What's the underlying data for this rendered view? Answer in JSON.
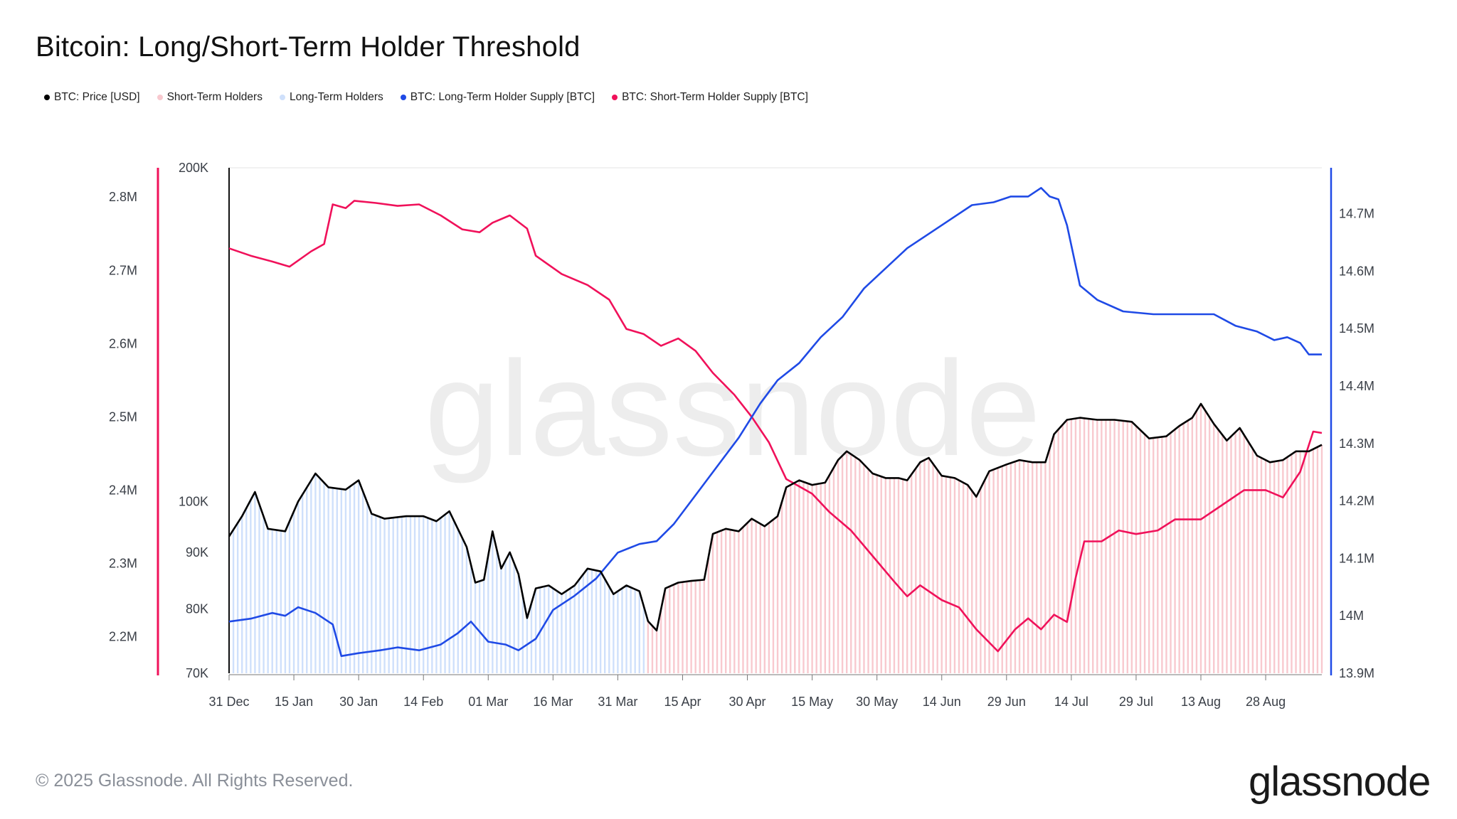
{
  "title": "Bitcoin: Long/Short-Term Holder Threshold",
  "legend": [
    {
      "label": "BTC: Price [USD]",
      "color": "#000000"
    },
    {
      "label": "Short-Term Holders",
      "color": "#f8c9cf"
    },
    {
      "label": "Long-Term Holders",
      "color": "#cfe0fb"
    },
    {
      "label": "BTC: Long-Term Holder Supply [BTC]",
      "color": "#1f4ae6"
    },
    {
      "label": "BTC: Short-Term Holder Supply [BTC]",
      "color": "#f0115a"
    }
  ],
  "footer": {
    "copyright": "© 2025 Glassnode. All Rights Reserved.",
    "logo_text": "glassnode",
    "watermark": "glassnode"
  },
  "colors": {
    "price": "#000000",
    "lth": "#1f4ae6",
    "sth": "#f0115a",
    "lth_fill": "#cfe0fb",
    "sth_fill": "#f8c9cf"
  },
  "chart_data": {
    "type": "line",
    "title": "Bitcoin: Long/Short-Term Holder Threshold",
    "x_ticks": [
      "31 Dec",
      "15 Jan",
      "30 Jan",
      "14 Feb",
      "01 Mar",
      "16 Mar",
      "31 Mar",
      "15 Apr",
      "30 Apr",
      "15 May",
      "30 May",
      "14 Jun",
      "29 Jun",
      "14 Jul",
      "29 Jul",
      "13 Aug",
      "28 Aug"
    ],
    "x_start": "2024-12-31",
    "x_end": "2025-09-10",
    "price_axis": {
      "ticks": [
        "70K",
        "80K",
        "90K",
        "100K",
        "200K"
      ],
      "scale": "log",
      "range": [
        70000,
        200000
      ]
    },
    "sth_axis": {
      "ticks": [
        "2.2M",
        "2.3M",
        "2.4M",
        "2.5M",
        "2.6M",
        "2.7M",
        "2.8M"
      ],
      "range": [
        2150000,
        2840000
      ]
    },
    "lth_axis": {
      "ticks": [
        "13.9M",
        "14M",
        "14.1M",
        "14.2M",
        "14.3M",
        "14.4M",
        "14.5M",
        "14.6M",
        "14.7M"
      ],
      "range": [
        13900000,
        14780000
      ]
    },
    "regime_switch_date": "2025-04-07",
    "regimes": [
      {
        "name": "Long-Term Holders",
        "from": "2024-12-31",
        "to": "2025-04-07"
      },
      {
        "name": "Short-Term Holders",
        "from": "2025-04-07",
        "to": "2025-09-10"
      }
    ],
    "series": [
      {
        "name": "BTC: Price [USD]",
        "axis": "price",
        "points": [
          [
            "2024-12-31",
            93000
          ],
          [
            "2025-01-03",
            97000
          ],
          [
            "2025-01-06",
            102000
          ],
          [
            "2025-01-09",
            94500
          ],
          [
            "2025-01-13",
            94000
          ],
          [
            "2025-01-16",
            100000
          ],
          [
            "2025-01-20",
            106000
          ],
          [
            "2025-01-23",
            103000
          ],
          [
            "2025-01-27",
            102500
          ],
          [
            "2025-01-30",
            104500
          ],
          [
            "2025-02-02",
            97500
          ],
          [
            "2025-02-05",
            96500
          ],
          [
            "2025-02-10",
            97000
          ],
          [
            "2025-02-14",
            97000
          ],
          [
            "2025-02-17",
            96000
          ],
          [
            "2025-02-20",
            98000
          ],
          [
            "2025-02-24",
            91000
          ],
          [
            "2025-02-26",
            84500
          ],
          [
            "2025-02-28",
            85000
          ],
          [
            "2025-03-02",
            94000
          ],
          [
            "2025-03-04",
            87000
          ],
          [
            "2025-03-06",
            90000
          ],
          [
            "2025-03-08",
            86000
          ],
          [
            "2025-03-10",
            78500
          ],
          [
            "2025-03-12",
            83500
          ],
          [
            "2025-03-15",
            84000
          ],
          [
            "2025-03-18",
            82500
          ],
          [
            "2025-03-21",
            84000
          ],
          [
            "2025-03-24",
            87000
          ],
          [
            "2025-03-27",
            86500
          ],
          [
            "2025-03-30",
            82500
          ],
          [
            "2025-04-02",
            84000
          ],
          [
            "2025-04-05",
            83000
          ],
          [
            "2025-04-07",
            78000
          ],
          [
            "2025-04-09",
            76500
          ],
          [
            "2025-04-11",
            83500
          ],
          [
            "2025-04-14",
            84500
          ],
          [
            "2025-04-17",
            84800
          ],
          [
            "2025-04-20",
            85000
          ],
          [
            "2025-04-22",
            93500
          ],
          [
            "2025-04-25",
            94500
          ],
          [
            "2025-04-28",
            94000
          ],
          [
            "2025-05-01",
            96500
          ],
          [
            "2025-05-04",
            95000
          ],
          [
            "2025-05-07",
            97000
          ],
          [
            "2025-05-09",
            103000
          ],
          [
            "2025-05-12",
            104500
          ],
          [
            "2025-05-15",
            103500
          ],
          [
            "2025-05-18",
            104000
          ],
          [
            "2025-05-21",
            109000
          ],
          [
            "2025-05-23",
            111000
          ],
          [
            "2025-05-26",
            109000
          ],
          [
            "2025-05-29",
            106000
          ],
          [
            "2025-06-01",
            105000
          ],
          [
            "2025-06-04",
            105000
          ],
          [
            "2025-06-06",
            104500
          ],
          [
            "2025-06-09",
            108500
          ],
          [
            "2025-06-11",
            109500
          ],
          [
            "2025-06-14",
            105500
          ],
          [
            "2025-06-17",
            105000
          ],
          [
            "2025-06-20",
            103500
          ],
          [
            "2025-06-22",
            101000
          ],
          [
            "2025-06-25",
            106500
          ],
          [
            "2025-06-29",
            108000
          ],
          [
            "2025-07-02",
            109000
          ],
          [
            "2025-07-05",
            108500
          ],
          [
            "2025-07-08",
            108500
          ],
          [
            "2025-07-10",
            115000
          ],
          [
            "2025-07-13",
            118500
          ],
          [
            "2025-07-16",
            119000
          ],
          [
            "2025-07-20",
            118500
          ],
          [
            "2025-07-24",
            118500
          ],
          [
            "2025-07-28",
            118000
          ],
          [
            "2025-08-01",
            114000
          ],
          [
            "2025-08-05",
            114500
          ],
          [
            "2025-08-08",
            117000
          ],
          [
            "2025-08-11",
            119000
          ],
          [
            "2025-08-13",
            122500
          ],
          [
            "2025-08-16",
            117500
          ],
          [
            "2025-08-19",
            113500
          ],
          [
            "2025-08-22",
            116500
          ],
          [
            "2025-08-26",
            110000
          ],
          [
            "2025-08-29",
            108500
          ],
          [
            "2025-09-01",
            109000
          ],
          [
            "2025-09-04",
            111000
          ],
          [
            "2025-09-07",
            111000
          ],
          [
            "2025-09-10",
            112500
          ]
        ]
      },
      {
        "name": "BTC: Long-Term Holder Supply [BTC]",
        "axis": "lth",
        "points": [
          [
            "2024-12-31",
            13990000
          ],
          [
            "2025-01-05",
            13995000
          ],
          [
            "2025-01-10",
            14005000
          ],
          [
            "2025-01-13",
            14000000
          ],
          [
            "2025-01-16",
            14015000
          ],
          [
            "2025-01-20",
            14005000
          ],
          [
            "2025-01-24",
            13985000
          ],
          [
            "2025-01-26",
            13930000
          ],
          [
            "2025-01-30",
            13935000
          ],
          [
            "2025-02-04",
            13940000
          ],
          [
            "2025-02-08",
            13945000
          ],
          [
            "2025-02-13",
            13940000
          ],
          [
            "2025-02-18",
            13950000
          ],
          [
            "2025-02-22",
            13970000
          ],
          [
            "2025-02-25",
            13990000
          ],
          [
            "2025-03-01",
            13955000
          ],
          [
            "2025-03-05",
            13950000
          ],
          [
            "2025-03-08",
            13940000
          ],
          [
            "2025-03-12",
            13960000
          ],
          [
            "2025-03-16",
            14010000
          ],
          [
            "2025-03-21",
            14035000
          ],
          [
            "2025-03-26",
            14065000
          ],
          [
            "2025-03-31",
            14110000
          ],
          [
            "2025-04-05",
            14125000
          ],
          [
            "2025-04-09",
            14130000
          ],
          [
            "2025-04-13",
            14160000
          ],
          [
            "2025-04-18",
            14210000
          ],
          [
            "2025-04-23",
            14260000
          ],
          [
            "2025-04-28",
            14310000
          ],
          [
            "2025-05-03",
            14370000
          ],
          [
            "2025-05-07",
            14410000
          ],
          [
            "2025-05-12",
            14440000
          ],
          [
            "2025-05-17",
            14485000
          ],
          [
            "2025-05-22",
            14520000
          ],
          [
            "2025-05-27",
            14570000
          ],
          [
            "2025-06-01",
            14605000
          ],
          [
            "2025-06-06",
            14640000
          ],
          [
            "2025-06-11",
            14665000
          ],
          [
            "2025-06-16",
            14690000
          ],
          [
            "2025-06-21",
            14715000
          ],
          [
            "2025-06-26",
            14720000
          ],
          [
            "2025-06-30",
            14730000
          ],
          [
            "2025-07-04",
            14730000
          ],
          [
            "2025-07-07",
            14745000
          ],
          [
            "2025-07-09",
            14730000
          ],
          [
            "2025-07-11",
            14725000
          ],
          [
            "2025-07-13",
            14680000
          ],
          [
            "2025-07-16",
            14575000
          ],
          [
            "2025-07-20",
            14550000
          ],
          [
            "2025-07-26",
            14530000
          ],
          [
            "2025-08-02",
            14525000
          ],
          [
            "2025-08-10",
            14525000
          ],
          [
            "2025-08-16",
            14525000
          ],
          [
            "2025-08-21",
            14505000
          ],
          [
            "2025-08-26",
            14495000
          ],
          [
            "2025-08-30",
            14480000
          ],
          [
            "2025-09-02",
            14485000
          ],
          [
            "2025-09-05",
            14475000
          ],
          [
            "2025-09-07",
            14455000
          ],
          [
            "2025-09-10",
            14455000
          ]
        ]
      },
      {
        "name": "BTC: Short-Term Holder Supply [BTC]",
        "axis": "sth",
        "points": [
          [
            "2024-12-31",
            2730000
          ],
          [
            "2025-01-05",
            2720000
          ],
          [
            "2025-01-10",
            2712000
          ],
          [
            "2025-01-14",
            2705000
          ],
          [
            "2025-01-19",
            2726000
          ],
          [
            "2025-01-22",
            2736000
          ],
          [
            "2025-01-24",
            2790000
          ],
          [
            "2025-01-27",
            2785000
          ],
          [
            "2025-01-29",
            2795000
          ],
          [
            "2025-02-03",
            2792000
          ],
          [
            "2025-02-08",
            2788000
          ],
          [
            "2025-02-13",
            2790000
          ],
          [
            "2025-02-18",
            2775000
          ],
          [
            "2025-02-23",
            2756000
          ],
          [
            "2025-02-27",
            2752000
          ],
          [
            "2025-03-02",
            2765000
          ],
          [
            "2025-03-06",
            2775000
          ],
          [
            "2025-03-10",
            2757000
          ],
          [
            "2025-03-12",
            2720000
          ],
          [
            "2025-03-18",
            2695000
          ],
          [
            "2025-03-24",
            2680000
          ],
          [
            "2025-03-29",
            2660000
          ],
          [
            "2025-04-02",
            2620000
          ],
          [
            "2025-04-06",
            2613000
          ],
          [
            "2025-04-10",
            2597000
          ],
          [
            "2025-04-14",
            2607000
          ],
          [
            "2025-04-18",
            2590000
          ],
          [
            "2025-04-22",
            2560000
          ],
          [
            "2025-04-27",
            2530000
          ],
          [
            "2025-05-01",
            2500000
          ],
          [
            "2025-05-05",
            2465000
          ],
          [
            "2025-05-09",
            2415000
          ],
          [
            "2025-05-15",
            2395000
          ],
          [
            "2025-05-19",
            2370000
          ],
          [
            "2025-05-24",
            2345000
          ],
          [
            "2025-05-29",
            2310000
          ],
          [
            "2025-06-03",
            2275000
          ],
          [
            "2025-06-06",
            2255000
          ],
          [
            "2025-06-09",
            2270000
          ],
          [
            "2025-06-14",
            2250000
          ],
          [
            "2025-06-18",
            2240000
          ],
          [
            "2025-06-22",
            2210000
          ],
          [
            "2025-06-27",
            2180000
          ],
          [
            "2025-07-01",
            2210000
          ],
          [
            "2025-07-04",
            2225000
          ],
          [
            "2025-07-07",
            2210000
          ],
          [
            "2025-07-10",
            2230000
          ],
          [
            "2025-07-13",
            2220000
          ],
          [
            "2025-07-15",
            2280000
          ],
          [
            "2025-07-17",
            2330000
          ],
          [
            "2025-07-21",
            2330000
          ],
          [
            "2025-07-25",
            2345000
          ],
          [
            "2025-07-29",
            2340000
          ],
          [
            "2025-08-03",
            2345000
          ],
          [
            "2025-08-07",
            2360000
          ],
          [
            "2025-08-13",
            2360000
          ],
          [
            "2025-08-18",
            2380000
          ],
          [
            "2025-08-23",
            2400000
          ],
          [
            "2025-08-28",
            2400000
          ],
          [
            "2025-09-01",
            2390000
          ],
          [
            "2025-09-05",
            2425000
          ],
          [
            "2025-09-08",
            2480000
          ],
          [
            "2025-09-10",
            2478000
          ]
        ]
      }
    ]
  }
}
